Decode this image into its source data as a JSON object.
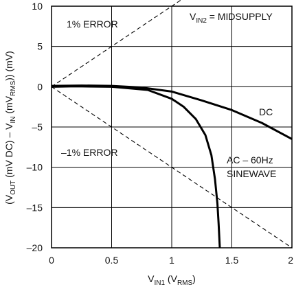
{
  "chart_data": {
    "type": "line",
    "xlim": [
      0,
      2
    ],
    "ylim": [
      -20,
      10
    ],
    "grid": true,
    "x_ticks": [
      0,
      0.5,
      1,
      1.5,
      2
    ],
    "y_ticks": [
      10,
      5,
      0,
      -5,
      -10,
      -15,
      -20
    ],
    "x_tick_labels": [
      "0",
      "0.5",
      "1",
      "1.5",
      "2"
    ],
    "y_tick_labels": [
      "10",
      "5",
      "0",
      "–5",
      "–10",
      "–15",
      "–20"
    ],
    "xlabel": {
      "base": "V",
      "sub": "IN1",
      "after": " (V",
      "sub2": "RMS",
      "end": ")"
    },
    "ylabel": {
      "prefix": "(V",
      "sub1": "OUT",
      "mid1": " (mV DC) – V",
      "sub2": "IN",
      "mid2": " (mV",
      "sub3": "RMS",
      "end": ")) (mV)"
    },
    "annotations": {
      "top_right_base": "V",
      "top_right_sub": "IN2",
      "top_right_rest": " = MIDSUPPLY",
      "plus_error": "1% ERROR",
      "minus_error": "–1% ERROR",
      "dc_label": "DC",
      "ac_line1": "AC – 60Hz",
      "ac_line2": "SINEWAVE"
    },
    "series": [
      {
        "name": "DC",
        "x": [
          0,
          0.25,
          0.5,
          0.75,
          1.0,
          1.25,
          1.5,
          1.75,
          2.0
        ],
        "y": [
          0.1,
          0.15,
          0.1,
          -0.1,
          -0.6,
          -1.7,
          -2.9,
          -4.5,
          -6.5
        ],
        "color": "#000000",
        "dash": "solid"
      },
      {
        "name": "AC – 60Hz SINEWAVE",
        "x": [
          0,
          0.2,
          0.5,
          0.8,
          1.0,
          1.1,
          1.2,
          1.28,
          1.33,
          1.36,
          1.38,
          1.39,
          1.4
        ],
        "y": [
          0.0,
          0.05,
          0.0,
          -0.4,
          -1.5,
          -2.5,
          -4.0,
          -6.0,
          -8.5,
          -11.5,
          -14.5,
          -17.0,
          -20.0
        ],
        "color": "#000000",
        "dash": "solid"
      },
      {
        "name": "1% ERROR",
        "x": [
          0,
          2
        ],
        "y": [
          0,
          20
        ],
        "color": "#000000",
        "dash": "dashed"
      },
      {
        "name": "–1% ERROR",
        "x": [
          0,
          2
        ],
        "y": [
          0,
          -20
        ],
        "color": "#000000",
        "dash": "dashed"
      }
    ]
  }
}
